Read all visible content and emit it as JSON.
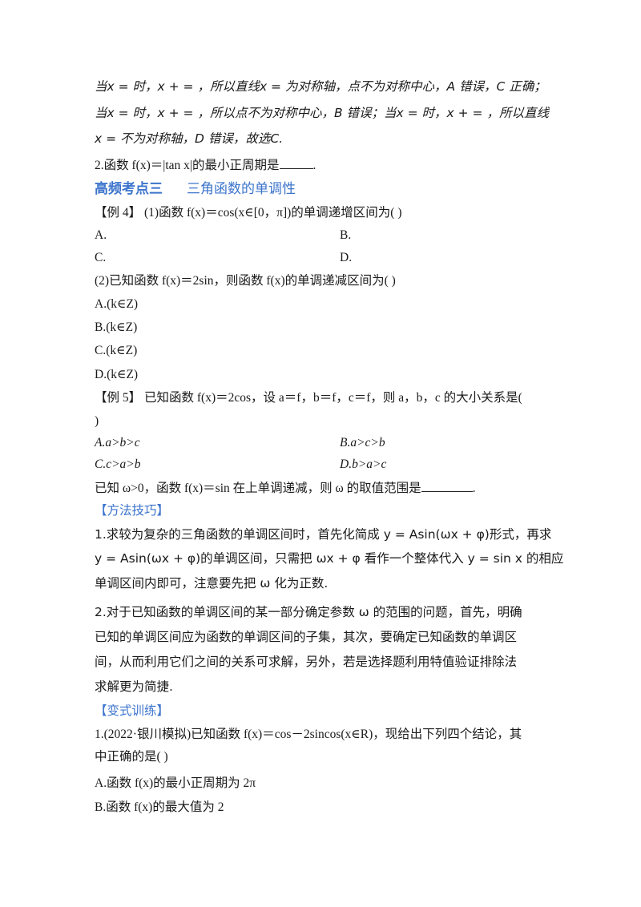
{
  "solution": {
    "line1": "当x = 时，x +  = ，所以直线x = 为对称轴，点不为对称中心，A 错误，C 正确；",
    "line2": "当x = 时，x +  = ，所以点不为对称中心，B 错误；当x = 时，x +  = ，所以直线",
    "line3": "x = 不为对称轴，D 错误，故选C."
  },
  "q2": {
    "text": "2.函数 f(x)＝|tan  x|的最小正周期是",
    "end": "."
  },
  "section": {
    "label": "高频考点三",
    "title": "三角函数的单调性"
  },
  "example4": {
    "tag": "【例 4】",
    "p1": "(1)函数 f(x)＝cos(x∈[0，π])的单调递增区间为(        )",
    "p1_options": [
      "A.",
      "B.",
      "C.",
      "D."
    ],
    "p2": "(2)已知函数 f(x)＝2sin，则函数 f(x)的单调递减区间为(        )",
    "p2_options": [
      "A.(k∈Z)",
      "B.(k∈Z)",
      "C.(k∈Z)",
      "D.(k∈Z)"
    ]
  },
  "example5": {
    "tag": "【例 5】",
    "text": " 已知函数 f(x)＝2cos，设 a＝f，b＝f，c＝f，则 a，b，c 的大小关系是(",
    "text_cont": ")",
    "options": [
      "A.a>b>c",
      "B.a>c>b",
      "C.c>a>b",
      "D.b>a>c"
    ]
  },
  "omega_q": {
    "text": "已知 ω>0，函数 f(x)＝sin 在上单调递减，则 ω 的取值范围是",
    "end": "."
  },
  "method": {
    "heading": "【方法技巧】",
    "lines": [
      "1.求较为复杂的三角函数的单调区间时，首先化简成 y = Asin(ωx + φ)形式，再求",
      "y = Asin(ωx + φ)的单调区间，只需把 ωx + φ 看作一个整体代入 y = sin  x 的相应",
      "单调区间内即可，注意要先把 ω 化为正数.",
      "2.对于已知函数的单调区间的某一部分确定参数 ω 的范围的问题，首先，明确",
      "已知的单调区间应为函数的单调区间的子集，其次，要确定已知函数的单调区",
      "间，从而利用它们之间的关系可求解，另外，若是选择题利用特值验证排除法",
      "求解更为简捷."
    ]
  },
  "practice": {
    "heading": "【变式训练】",
    "q1_line1": "1.(2022·银川模拟)已知函数 f(x)＝cos－2sincos(x∈R)，现给出下列四个结论，其",
    "q1_line2": "中正确的是(        )",
    "options": [
      "A.函数 f(x)的最小正周期为 2π",
      "B.函数 f(x)的最大值为 2"
    ]
  },
  "colors": {
    "accent": "#3c74cc",
    "text": "#1a1a1a"
  }
}
